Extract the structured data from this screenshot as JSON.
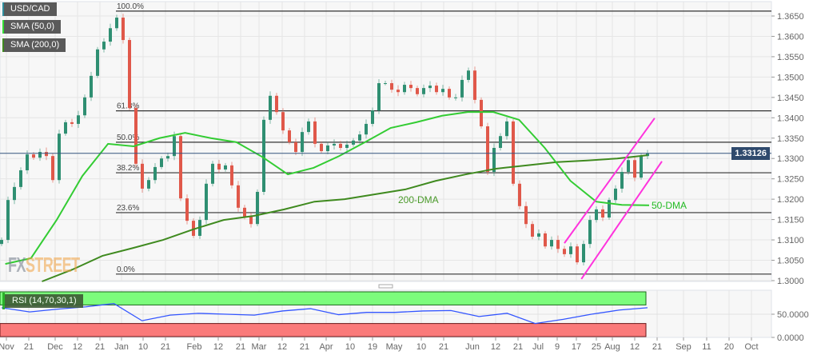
{
  "legend": {
    "symbol": "USD/CAD",
    "sma50": "SMA (50,0)",
    "sma200": "SMA (200,0)",
    "rsi": "RSI (14,70,30,1)"
  },
  "colors": {
    "up": "#2f8f72",
    "down": "#e0584a",
    "sma50": "#33cc33",
    "sma200": "#3f8a1f",
    "fib": "#333333",
    "price_line": "#34557e",
    "channel": "#ff33dd",
    "rsi": "#3355ff",
    "rsi_overbought": "#7cfc7c",
    "rsi_oversold": "#fa7a7a"
  },
  "logo": "FXSTREET",
  "chart_data": {
    "type": "candlestick",
    "price_axis": {
      "range": [
        1.2985,
        1.3675
      ],
      "ticks": [
        "1.3650",
        "1.3600",
        "1.3550",
        "1.3500",
        "1.3450",
        "1.3400",
        "1.3350",
        "1.3300",
        "1.3250",
        "1.3200",
        "1.3150",
        "1.3100",
        "1.3050",
        "1.3000"
      ]
    },
    "current_price": {
      "value": 1.33126,
      "label": "1.33126"
    },
    "x_ticks": [
      {
        "label": "Nov",
        "date": "2018-11-01"
      },
      {
        "label": "21",
        "date": "2018-11-21"
      },
      {
        "label": "Dec",
        "date": "2018-12-01"
      },
      {
        "label": "12",
        "date": "2018-12-12"
      },
      {
        "label": "21",
        "date": "2018-12-21"
      },
      {
        "label": "Jan",
        "date": "2019-01-01"
      },
      {
        "label": "10",
        "date": "2019-01-10"
      },
      {
        "label": "21",
        "date": "2019-01-21"
      },
      {
        "label": "Feb",
        "date": "2019-02-01"
      },
      {
        "label": "12",
        "date": "2019-02-12"
      },
      {
        "label": "21",
        "date": "2019-02-21"
      },
      {
        "label": "Mar",
        "date": "2019-03-01"
      },
      {
        "label": "12",
        "date": "2019-03-12"
      },
      {
        "label": "21",
        "date": "2019-03-21"
      },
      {
        "label": "Apr",
        "date": "2019-04-01"
      },
      {
        "label": "10",
        "date": "2019-04-10"
      },
      {
        "label": "19",
        "date": "2019-04-19"
      },
      {
        "label": "May",
        "date": "2019-05-01"
      },
      {
        "label": "10",
        "date": "2019-05-10"
      },
      {
        "label": "21",
        "date": "2019-05-21"
      },
      {
        "label": "Jun",
        "date": "2019-06-01"
      },
      {
        "label": "12",
        "date": "2019-06-12"
      },
      {
        "label": "21",
        "date": "2019-06-21"
      },
      {
        "label": "Jul",
        "date": "2019-07-01"
      },
      {
        "label": "9",
        "date": "2019-07-09"
      },
      {
        "label": "17",
        "date": "2019-07-17"
      },
      {
        "label": "25",
        "date": "2019-07-25"
      },
      {
        "label": "Aug",
        "date": "2019-08-01"
      },
      {
        "label": "12",
        "date": "2019-08-12"
      },
      {
        "label": "21",
        "date": "2019-08-21"
      },
      {
        "label": "Sep",
        "date": "2019-09-01"
      },
      {
        "label": "11",
        "date": "2019-09-11"
      },
      {
        "label": "20",
        "date": "2019-09-20"
      },
      {
        "label": "Oct",
        "date": "2019-10-01"
      }
    ],
    "candles": {
      "start_date": "2018-10-31",
      "end_date": "2019-08-16",
      "close": [
        1.31,
        1.3198,
        1.323,
        1.3271,
        1.331,
        1.3302,
        1.3316,
        1.3306,
        1.3247,
        1.3361,
        1.3389,
        1.3385,
        1.3406,
        1.345,
        1.3503,
        1.3568,
        1.3587,
        1.362,
        1.3646,
        1.3591,
        1.3424,
        1.3287,
        1.3226,
        1.3247,
        1.3279,
        1.33,
        1.3306,
        1.3355,
        1.3202,
        1.3147,
        1.311,
        1.3149,
        1.3238,
        1.3287,
        1.3273,
        1.3283,
        1.3234,
        1.3179,
        1.3157,
        1.3139,
        1.3218,
        1.3395,
        1.3454,
        1.3414,
        1.3369,
        1.334,
        1.3316,
        1.3365,
        1.3391,
        1.3336,
        1.3318,
        1.3332,
        1.3336,
        1.3326,
        1.3334,
        1.3344,
        1.3359,
        1.3385,
        1.3418,
        1.3485,
        1.3485,
        1.3469,
        1.3463,
        1.3481,
        1.3473,
        1.3458,
        1.3473,
        1.3479,
        1.3463,
        1.3471,
        1.345,
        1.345,
        1.3493,
        1.3516,
        1.3444,
        1.3379,
        1.3267,
        1.3326,
        1.3355,
        1.3391,
        1.3238,
        1.3183,
        1.3139,
        1.3108,
        1.3116,
        1.3084,
        1.31,
        1.3078,
        1.3065,
        1.3084,
        1.3045,
        1.309,
        1.3149,
        1.3175,
        1.3155,
        1.3198,
        1.3226,
        1.3267,
        1.3296,
        1.3253,
        1.3306,
        1.33126
      ]
    },
    "sma50": {
      "label": "50-DMA",
      "start_date": "2018-10-31",
      "end_date": "2019-08-16",
      "values": [
        1.3041,
        1.3055,
        1.3149,
        1.3257,
        1.3336,
        1.333,
        1.335,
        1.3363,
        1.335,
        1.334,
        1.3304,
        1.3261,
        1.3277,
        1.3306,
        1.334,
        1.3375,
        1.3389,
        1.3405,
        1.3414,
        1.3414,
        1.3395,
        1.3326,
        1.3245,
        1.3194,
        1.3186,
        1.3185
      ]
    },
    "sma200": {
      "label": "200-DMA",
      "start_date": "2018-11-26",
      "end_date": "2019-08-16",
      "values": [
        1.299,
        1.3027,
        1.3061,
        1.308,
        1.31,
        1.3126,
        1.3149,
        1.3159,
        1.3175,
        1.3194,
        1.32,
        1.3212,
        1.3224,
        1.3245,
        1.3261,
        1.3275,
        1.3283,
        1.3291,
        1.3295,
        1.33,
        1.3308
      ]
    },
    "fibonacci": [
      {
        "label": "100.0%",
        "price": 1.3662
      },
      {
        "label": "61.8%",
        "price": 1.3417
      },
      {
        "label": "50.0%",
        "price": 1.334
      },
      {
        "label": "38.2%",
        "price": 1.3265
      },
      {
        "label": "23.6%",
        "price": 1.3167
      },
      {
        "label": "0.0%",
        "price": 1.3016
      }
    ],
    "channel": [
      {
        "from": {
          "date": "2019-07-12",
          "price": 1.3092
        },
        "to": {
          "date": "2019-08-20",
          "price": 1.3399
        }
      },
      {
        "from": {
          "date": "2019-07-19",
          "price": 1.3004
        },
        "to": {
          "date": "2019-08-23",
          "price": 1.3293
        }
      }
    ],
    "rsi": {
      "params": "14,70,30,1",
      "overbought": 70,
      "oversold": 30,
      "range": [
        0,
        100
      ],
      "ticks": [
        "50.0000",
        "0.0000"
      ],
      "start_date": "2018-10-31",
      "end_date": "2019-08-16",
      "values": [
        64,
        55,
        61,
        66,
        73,
        36,
        48,
        52,
        50,
        48,
        57,
        62,
        49,
        54,
        54,
        57,
        58,
        45,
        52,
        30,
        39,
        50,
        59,
        64
      ]
    }
  }
}
